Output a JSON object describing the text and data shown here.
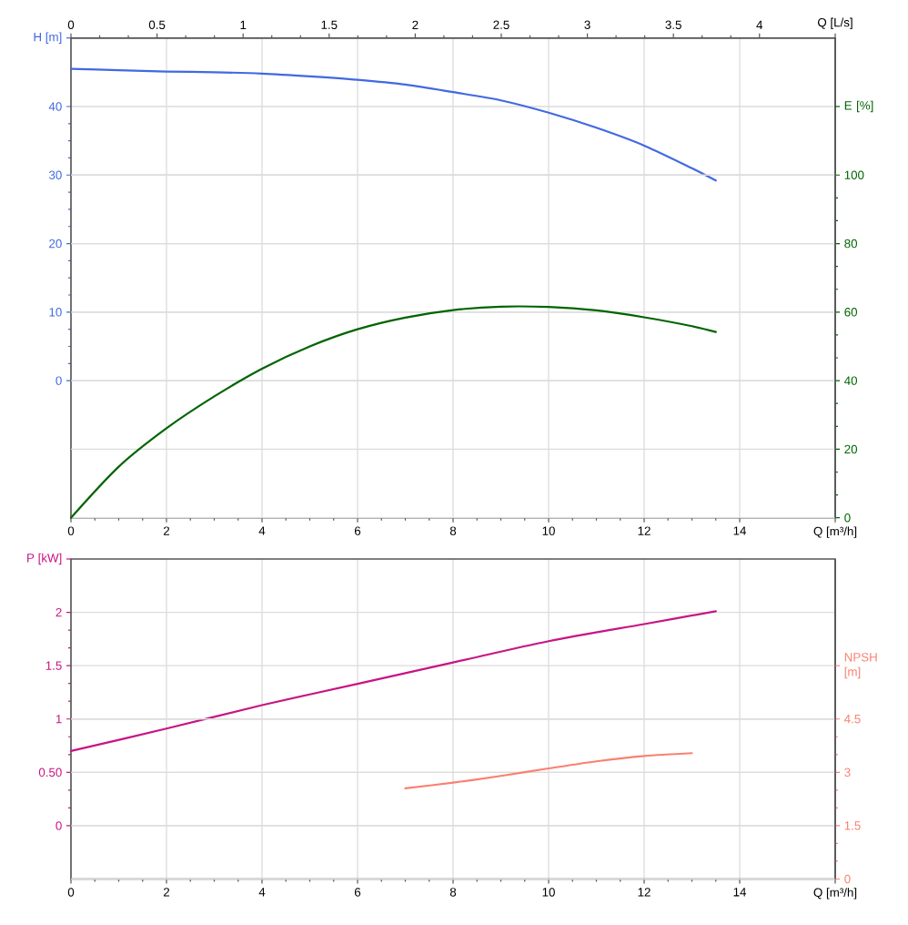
{
  "chart_data": [
    {
      "type": "line",
      "xlabel": "Q [m³/h]",
      "ylabel": "H [m]",
      "y2label": "E [%]",
      "x2label": "Q [L/s]",
      "xlim": [
        0,
        16
      ],
      "xticks": [
        0,
        2,
        4,
        6,
        8,
        10,
        12,
        14
      ],
      "x2lim": [
        0,
        4.44
      ],
      "x2ticks": [
        0,
        0.5,
        1,
        1.5,
        2,
        2.5,
        3,
        3.5,
        4
      ],
      "ylim": [
        -20,
        50
      ],
      "yticks": [
        0,
        10,
        20,
        30,
        40
      ],
      "y2lim": [
        0,
        140
      ],
      "y2ticks": [
        0,
        20,
        40,
        60,
        80,
        100
      ],
      "grid": true,
      "series": [
        {
          "color": "#4169e1",
          "x": [
            0,
            1,
            2,
            3,
            4,
            5,
            6,
            7,
            8,
            9,
            10,
            11,
            12,
            13,
            13.5
          ],
          "values": [
            45.5,
            45.3,
            45.1,
            45.0,
            44.8,
            44.4,
            43.9,
            43.2,
            42.1,
            40.9,
            39.1,
            36.9,
            34.3,
            31.0,
            29.2
          ]
        },
        {
          "color": "#006400",
          "axis": "y2",
          "x": [
            0,
            1,
            2,
            3,
            4,
            5,
            6,
            7,
            8,
            9,
            10,
            11,
            12,
            13,
            13.5
          ],
          "values": [
            0,
            14.9,
            26.1,
            35.4,
            43.5,
            50.0,
            55.0,
            58.4,
            60.6,
            61.6,
            61.5,
            60.5,
            58.5,
            55.9,
            54.2
          ]
        }
      ]
    },
    {
      "type": "line",
      "xlabel": "Q [m³/h]",
      "ylabel": "P [kW]",
      "y2label": "NPSH [m]",
      "xlim": [
        0,
        16
      ],
      "xticks": [
        0,
        2,
        4,
        6,
        8,
        10,
        12,
        14
      ],
      "ylim": [
        -0.5,
        2.5
      ],
      "yticks": [
        0,
        {
          "value": 0.5,
          "label": "0.50"
        },
        1,
        1.5,
        2
      ],
      "y2lim": [
        0,
        9
      ],
      "y2ticks": [
        0,
        1.5,
        3,
        4.5
      ],
      "grid": true,
      "series": [
        {
          "color": "#c71585",
          "x": [
            0,
            2,
            4,
            6,
            8,
            10,
            12,
            13.5
          ],
          "values": [
            0.7,
            0.91,
            1.13,
            1.33,
            1.53,
            1.73,
            1.89,
            2.01
          ]
        },
        {
          "color": "#fa8072",
          "axis": "y2",
          "x": [
            7,
            8,
            9,
            10,
            11,
            12,
            13
          ],
          "values": [
            2.55,
            2.71,
            2.9,
            3.11,
            3.31,
            3.46,
            3.54
          ]
        }
      ]
    }
  ]
}
